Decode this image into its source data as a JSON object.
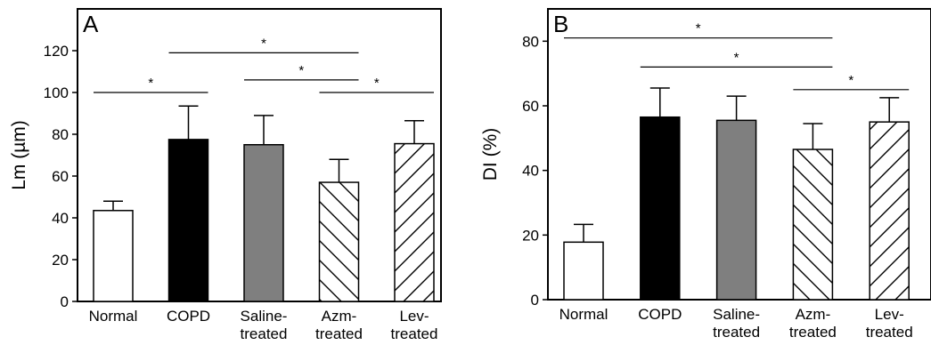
{
  "chart_data": [
    {
      "type": "bar",
      "panel": "A",
      "ylabel": "Lm (µm)",
      "ylim": [
        0,
        140
      ],
      "yticks": [
        0,
        20,
        40,
        60,
        80,
        100,
        120
      ],
      "categories": [
        [
          "Normal"
        ],
        [
          "COPD"
        ],
        [
          "Saline-",
          "treated"
        ],
        [
          "Azm-",
          "treated"
        ],
        [
          "Lev-",
          "treated"
        ]
      ],
      "values": [
        43.5,
        77.5,
        75.0,
        57.0,
        75.5
      ],
      "errors": [
        4.5,
        16.0,
        14.0,
        11.0,
        11.0
      ],
      "fills": [
        "white",
        "black",
        "gray",
        "hatch-backslash",
        "hatch-slash"
      ],
      "significance": [
        {
          "from": 0,
          "to": 1,
          "level": 100,
          "label": "*"
        },
        {
          "from": 1,
          "to": 3,
          "level": 119,
          "label": "*"
        },
        {
          "from": 2,
          "to": 3,
          "level": 106,
          "label": "*"
        },
        {
          "from": 3,
          "to": 4,
          "level": 100,
          "label": "*"
        }
      ]
    },
    {
      "type": "bar",
      "panel": "B",
      "ylabel": "DI (%)",
      "ylim": [
        0,
        90
      ],
      "yticks": [
        0,
        20,
        40,
        60,
        80
      ],
      "categories": [
        [
          "Normal"
        ],
        [
          "COPD"
        ],
        [
          "Saline-",
          "treated"
        ],
        [
          "Azm-",
          "treated"
        ],
        [
          "Lev-",
          "treated"
        ]
      ],
      "values": [
        17.8,
        56.5,
        55.5,
        46.5,
        55.0
      ],
      "errors": [
        5.5,
        9.0,
        7.5,
        8.0,
        7.5
      ],
      "fills": [
        "white",
        "black",
        "gray",
        "hatch-backslash",
        "hatch-slash"
      ],
      "significance": [
        {
          "from": 0,
          "to": 3,
          "level": 81,
          "label": "*"
        },
        {
          "from": 1,
          "to": 3,
          "level": 72,
          "label": "*"
        },
        {
          "from": 3,
          "to": 4,
          "level": 65,
          "label": "*"
        }
      ]
    }
  ],
  "colors": {
    "white": "#ffffff",
    "black": "#000000",
    "gray": "#7f7f7f",
    "axis": "#000000"
  }
}
